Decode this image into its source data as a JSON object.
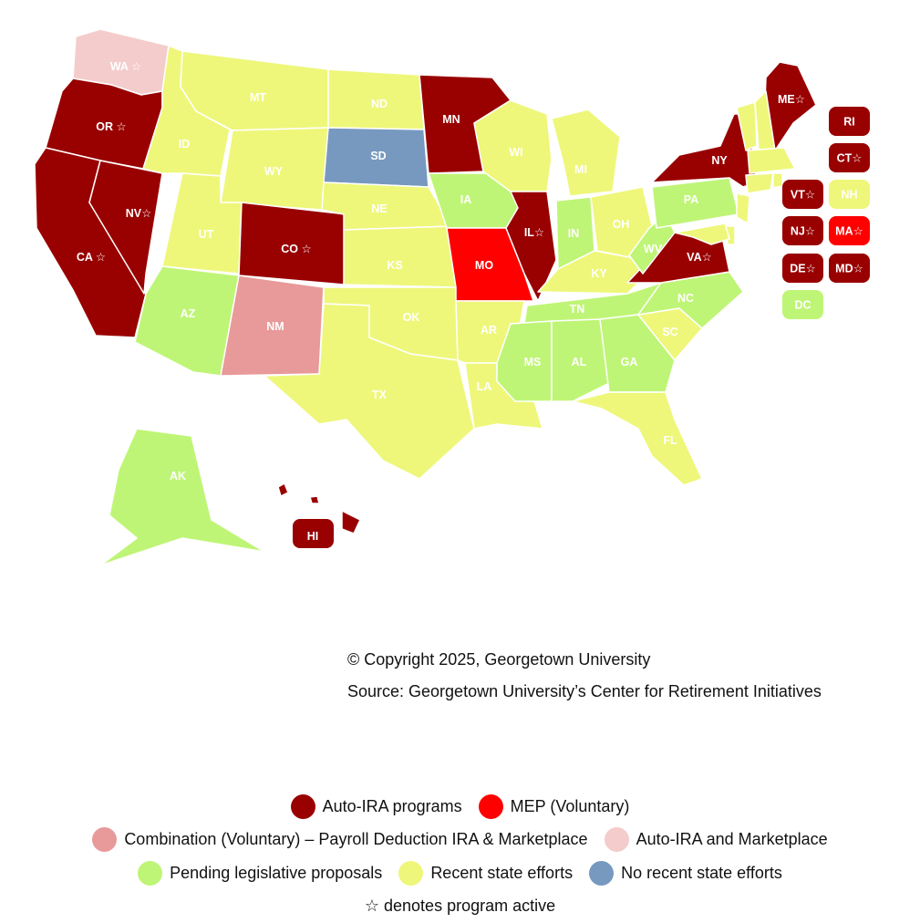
{
  "colors": {
    "auto_ira": "#990000",
    "mep": "#ff0000",
    "combination": "#e89999",
    "auto_ira_marketplace": "#f4cccc",
    "pending": "#bff576",
    "recent": "#eef77a",
    "none": "#7799bf"
  },
  "states": {
    "WA": {
      "label": "WA ☆",
      "category": "auto_ira_marketplace"
    },
    "OR": {
      "label": "OR ☆",
      "category": "auto_ira"
    },
    "CA": {
      "label": "CA ☆",
      "category": "auto_ira"
    },
    "NV": {
      "label": "NV☆",
      "category": "auto_ira"
    },
    "ID": {
      "label": "ID",
      "category": "recent"
    },
    "MT": {
      "label": "MT",
      "category": "recent"
    },
    "WY": {
      "label": "WY",
      "category": "recent"
    },
    "UT": {
      "label": "UT",
      "category": "recent"
    },
    "CO": {
      "label": "CO ☆",
      "category": "auto_ira"
    },
    "AZ": {
      "label": "AZ",
      "category": "pending"
    },
    "NM": {
      "label": "NM",
      "category": "combination"
    },
    "ND": {
      "label": "ND",
      "category": "recent"
    },
    "SD": {
      "label": "SD",
      "category": "none"
    },
    "NE": {
      "label": "NE",
      "category": "recent"
    },
    "KS": {
      "label": "KS",
      "category": "recent"
    },
    "OK": {
      "label": "OK",
      "category": "recent"
    },
    "TX": {
      "label": "TX",
      "category": "recent"
    },
    "MN": {
      "label": "MN",
      "category": "auto_ira"
    },
    "IA": {
      "label": "IA",
      "category": "pending"
    },
    "MO": {
      "label": "MO",
      "category": "mep"
    },
    "AR": {
      "label": "AR",
      "category": "recent"
    },
    "LA": {
      "label": "LA",
      "category": "recent"
    },
    "WI": {
      "label": "WI",
      "category": "recent"
    },
    "IL": {
      "label": "IL☆",
      "category": "auto_ira"
    },
    "MI": {
      "label": "MI",
      "category": "recent"
    },
    "IN": {
      "label": "IN",
      "category": "pending"
    },
    "OH": {
      "label": "OH",
      "category": "recent"
    },
    "KY": {
      "label": "KY",
      "category": "recent"
    },
    "TN": {
      "label": "TN",
      "category": "pending"
    },
    "MS": {
      "label": "MS",
      "category": "pending"
    },
    "AL": {
      "label": "AL",
      "category": "pending"
    },
    "GA": {
      "label": "GA",
      "category": "pending"
    },
    "FL": {
      "label": "FL",
      "category": "recent"
    },
    "SC": {
      "label": "SC",
      "category": "recent"
    },
    "NC": {
      "label": "NC",
      "category": "pending"
    },
    "VA": {
      "label": "VA☆",
      "category": "auto_ira"
    },
    "WV": {
      "label": "WV",
      "category": "pending"
    },
    "PA": {
      "label": "PA",
      "category": "pending"
    },
    "NY": {
      "label": "NY",
      "category": "auto_ira"
    },
    "ME": {
      "label": "ME☆",
      "category": "auto_ira"
    },
    "AK": {
      "label": "AK",
      "category": "pending"
    },
    "HI": {
      "label": "HI",
      "category": "auto_ira"
    }
  },
  "small_states": [
    {
      "id": "RI",
      "label": "RI",
      "category": "auto_ira"
    },
    {
      "id": "CT",
      "label": "CT☆",
      "category": "auto_ira"
    },
    {
      "id": "VT",
      "label": "VT☆",
      "category": "auto_ira"
    },
    {
      "id": "NH",
      "label": "NH",
      "category": "recent"
    },
    {
      "id": "NJ",
      "label": "NJ☆",
      "category": "auto_ira"
    },
    {
      "id": "MA",
      "label": "MA☆",
      "category": "mep"
    },
    {
      "id": "DE",
      "label": "DE☆",
      "category": "auto_ira"
    },
    {
      "id": "MD",
      "label": "MD☆",
      "category": "auto_ira"
    },
    {
      "id": "DC",
      "label": "DC",
      "category": "pending"
    }
  ],
  "credits": {
    "copyright": "© Copyright 2025, Georgetown University",
    "source": "Source: Georgetown University’s Center for Retirement Initiatives"
  },
  "legend": {
    "rows": [
      [
        {
          "label": "Auto-IRA programs",
          "category": "auto_ira"
        },
        {
          "label": "MEP (Voluntary)",
          "category": "mep"
        }
      ],
      [
        {
          "label": "Combination (Voluntary) – Payroll Deduction IRA & Marketplace",
          "category": "combination"
        },
        {
          "label": "Auto-IRA and Marketplace",
          "category": "auto_ira_marketplace"
        }
      ],
      [
        {
          "label": "Pending legislative proposals",
          "category": "pending"
        },
        {
          "label": "Recent state efforts",
          "category": "recent"
        },
        {
          "label": "No recent state efforts",
          "category": "none"
        }
      ]
    ],
    "note": "☆ denotes program active"
  }
}
